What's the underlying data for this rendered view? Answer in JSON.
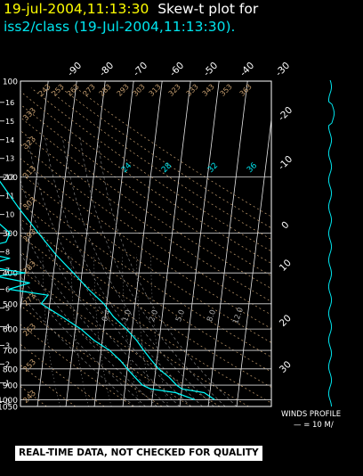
{
  "header": {
    "timestamp": "19-jul-2004,11:13:30",
    "title": "Skew-t plot for",
    "subtitle": "iss2/class (19-Jul-2004,11:13:30)."
  },
  "winds": {
    "label": "WINDS PROFILE",
    "scale": "— = 10 M/"
  },
  "disclaimer": "REAL-TIME DATA, NOT CHECKED FOR QUALITY",
  "chart_data": {
    "type": "line",
    "subtype": "skew-t log-p sounding",
    "pressure_ticks": [
      100,
      200,
      300,
      400,
      500,
      600,
      700,
      800,
      900,
      1000,
      1050
    ],
    "height_km_ticks": [
      0,
      1,
      2,
      3,
      4,
      5,
      6,
      7,
      8,
      9,
      10,
      11,
      12,
      13,
      14,
      15,
      16
    ],
    "temp_ticks_top": [
      "-90",
      "-80",
      "-70",
      "-60",
      "-50",
      "-40",
      "-30"
    ],
    "temp_ticks_right": [
      "-20",
      "-10",
      "0",
      "10",
      "20",
      "30"
    ],
    "dry_adiabat_labels": [
      "243",
      "253",
      "263",
      "273",
      "283",
      "293",
      "303",
      "313",
      "323",
      "333"
    ],
    "mixing_ratio_labels": [
      "0.4",
      "1.0",
      "2.0",
      "5.0",
      "8.0",
      "12.0"
    ],
    "wet_bulb_labels": [
      "24",
      "28",
      "32",
      "36"
    ],
    "ylim": [
      1050,
      100
    ],
    "xlim_bottom": [
      -40,
      40
    ],
    "series": [
      {
        "color": "#00ffff",
        "points": [
          [
            1000,
            32
          ],
          [
            950,
            28
          ],
          [
            925,
            20
          ],
          [
            900,
            18
          ],
          [
            850,
            15
          ],
          [
            800,
            11
          ],
          [
            750,
            8
          ],
          [
            700,
            5
          ],
          [
            650,
            2
          ],
          [
            600,
            -2
          ],
          [
            550,
            -7
          ],
          [
            500,
            -11
          ],
          [
            450,
            -17
          ],
          [
            400,
            -23
          ],
          [
            350,
            -30
          ],
          [
            300,
            -37
          ],
          [
            250,
            -45
          ],
          [
            200,
            -54
          ],
          [
            175,
            -60
          ],
          [
            150,
            -65
          ],
          [
            125,
            -71
          ],
          [
            110,
            -74
          ],
          [
            100,
            -76
          ]
        ]
      },
      {
        "color": "#00ffff",
        "points": [
          [
            1000,
            25
          ],
          [
            950,
            18
          ],
          [
            925,
            9
          ],
          [
            900,
            6
          ],
          [
            850,
            3
          ],
          [
            800,
            0
          ],
          [
            750,
            -3
          ],
          [
            700,
            -7
          ],
          [
            650,
            -13
          ],
          [
            600,
            -18
          ],
          [
            550,
            -25
          ],
          [
            500,
            -33
          ],
          [
            470,
            -31
          ],
          [
            450,
            -45
          ],
          [
            430,
            -38
          ],
          [
            410,
            -50
          ],
          [
            400,
            -40
          ],
          [
            380,
            -55
          ],
          [
            360,
            -46
          ],
          [
            340,
            -60
          ],
          [
            320,
            -48
          ],
          [
            300,
            -47
          ],
          [
            250,
            -58
          ],
          [
            200,
            -70
          ],
          [
            150,
            -80
          ],
          [
            125,
            -84
          ],
          [
            100,
            -86
          ]
        ]
      }
    ]
  }
}
